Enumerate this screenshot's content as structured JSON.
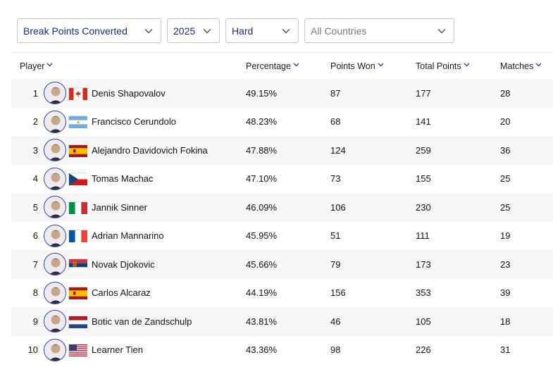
{
  "filters": {
    "stat": "Break Points Converted",
    "year": "2025",
    "surface": "Hard",
    "country": "All Countries"
  },
  "columns": {
    "player": "Player",
    "percentage": "Percentage",
    "points_won": "Points Won",
    "total_points": "Total Points",
    "matches": "Matches"
  },
  "rows": [
    {
      "rank": "1",
      "name": "Denis Shapovalov",
      "flag": "canada-flag",
      "percentage": "49.15%",
      "points_won": "87",
      "total_points": "177",
      "matches": "28"
    },
    {
      "rank": "2",
      "name": "Francisco Cerundolo",
      "flag": "argentina-flag",
      "percentage": "48.23%",
      "points_won": "68",
      "total_points": "141",
      "matches": "20"
    },
    {
      "rank": "3",
      "name": "Alejandro Davidovich Fokina",
      "flag": "spain-flag",
      "percentage": "47.88%",
      "points_won": "124",
      "total_points": "259",
      "matches": "36"
    },
    {
      "rank": "4",
      "name": "Tomas Machac",
      "flag": "czech-flag",
      "percentage": "47.10%",
      "points_won": "73",
      "total_points": "155",
      "matches": "25"
    },
    {
      "rank": "5",
      "name": "Jannik Sinner",
      "flag": "italy-flag",
      "percentage": "46.09%",
      "points_won": "106",
      "total_points": "230",
      "matches": "25"
    },
    {
      "rank": "6",
      "name": "Adrian Mannarino",
      "flag": "france-flag",
      "percentage": "45.95%",
      "points_won": "51",
      "total_points": "111",
      "matches": "19"
    },
    {
      "rank": "7",
      "name": "Novak Djokovic",
      "flag": "serbia-flag",
      "percentage": "45.66%",
      "points_won": "79",
      "total_points": "173",
      "matches": "23"
    },
    {
      "rank": "8",
      "name": "Carlos Alcaraz",
      "flag": "spain-flag",
      "percentage": "44.19%",
      "points_won": "156",
      "total_points": "353",
      "matches": "39"
    },
    {
      "rank": "9",
      "name": "Botic van de Zandschulp",
      "flag": "netherlands-flag",
      "percentage": "43.81%",
      "points_won": "46",
      "total_points": "105",
      "matches": "18"
    },
    {
      "rank": "10",
      "name": "Learner Tien",
      "flag": "usa-flag",
      "percentage": "43.36%",
      "points_won": "98",
      "total_points": "226",
      "matches": "31"
    }
  ],
  "colors": {
    "accent": "#1c2a8a",
    "row_alt": "#f6f6f6",
    "border": "#c8c8cc"
  }
}
